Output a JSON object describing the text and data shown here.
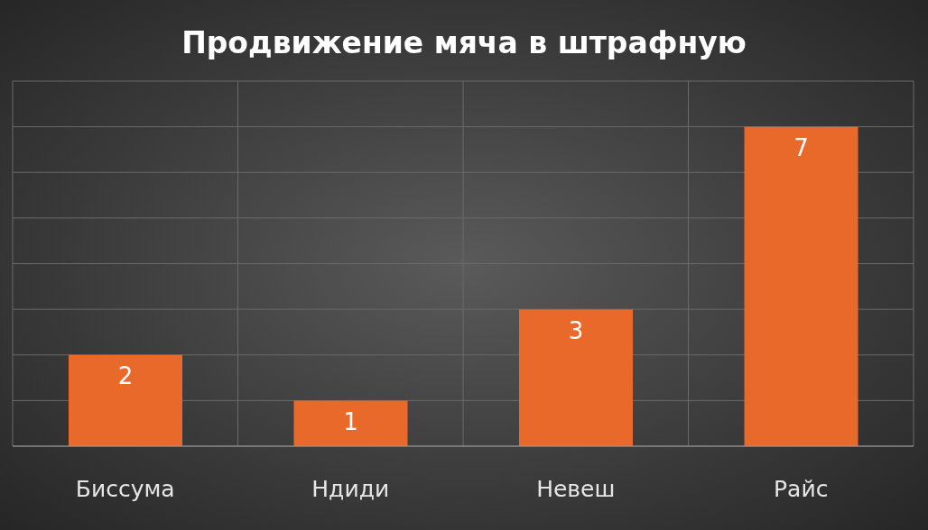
{
  "chart_data": {
    "type": "bar",
    "title": "Продвижение мяча в штрафную",
    "categories": [
      "Биссума",
      "Ндиди",
      "Невеш",
      "Райс"
    ],
    "values": [
      2,
      1,
      3,
      7
    ],
    "color": "#e8692a",
    "ylim": [
      0,
      8
    ],
    "tick_labels": "x",
    "grid": true,
    "data_labels": true,
    "legend": false
  }
}
